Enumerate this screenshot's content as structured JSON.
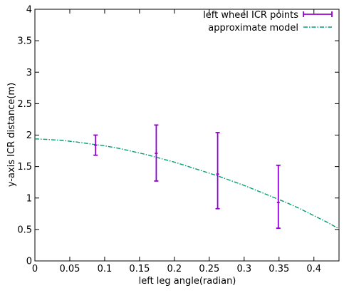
{
  "chart_data": {
    "type": "line",
    "title": "",
    "xlabel": "left leg angle(radian)",
    "ylabel": "y-axis ICR distance(m)",
    "xlim": [
      0,
      0.436
    ],
    "ylim": [
      0,
      4
    ],
    "xticks": [
      "0",
      "0.05",
      "0.1",
      "0.15",
      "0.2",
      "0.25",
      "0.3",
      "0.35",
      "0.4"
    ],
    "xtick_values": [
      0,
      0.05,
      0.1,
      0.15,
      0.2,
      0.25,
      0.3,
      0.35,
      0.4
    ],
    "yticks": [
      "0",
      "0.5",
      "1",
      "1.5",
      "2",
      "2.5",
      "3",
      "3.5",
      "4"
    ],
    "ytick_values": [
      0,
      0.5,
      1,
      1.5,
      2,
      2.5,
      3,
      3.5,
      4
    ],
    "grid": false,
    "legend_position": "top-right",
    "series": [
      {
        "name": "left wheel ICR points",
        "kind": "errorbar",
        "color": "#9400d3",
        "points": [
          {
            "x": 0.087,
            "y": 1.84,
            "ymin": 1.68,
            "ymax": 2.0
          },
          {
            "x": 0.174,
            "y": 1.71,
            "ymin": 1.27,
            "ymax": 2.16
          },
          {
            "x": 0.262,
            "y": 1.38,
            "ymin": 0.83,
            "ymax": 2.04
          },
          {
            "x": 0.349,
            "y": 0.93,
            "ymin": 0.52,
            "ymax": 1.52
          }
        ]
      },
      {
        "name": "approximate model",
        "kind": "line",
        "color": "#009e73",
        "dash": "dash-dot",
        "x": [
          0,
          0.02,
          0.04,
          0.06,
          0.08,
          0.1,
          0.12,
          0.14,
          0.16,
          0.18,
          0.2,
          0.22,
          0.24,
          0.26,
          0.28,
          0.3,
          0.32,
          0.34,
          0.36,
          0.38,
          0.4,
          0.42,
          0.436
        ],
        "y": [
          1.94,
          1.93,
          1.915,
          1.89,
          1.86,
          1.83,
          1.79,
          1.74,
          1.69,
          1.63,
          1.57,
          1.5,
          1.43,
          1.36,
          1.28,
          1.2,
          1.11,
          1.02,
          0.93,
          0.83,
          0.72,
          0.61,
          0.51
        ]
      }
    ]
  }
}
